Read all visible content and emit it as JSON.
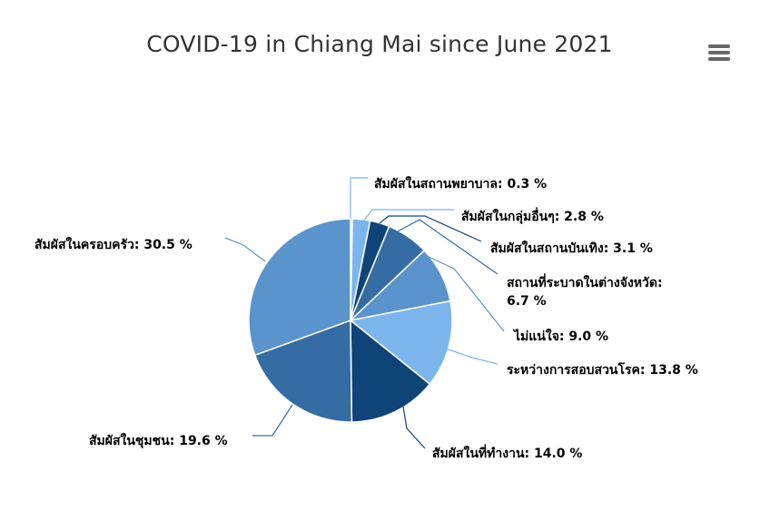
{
  "chart_data": {
    "type": "pie",
    "title": "COVID-19 in Chiang Mai since June 2021",
    "unit": "%",
    "slices": [
      {
        "label": "สัมผัสในสถานพยาบาล",
        "value": 0.3,
        "label_text": "สัมผัสในสถานพยาบาล: 0.3 %",
        "color": "#7fb3e6"
      },
      {
        "label": "สัมผัสในกลุ่มอื่นๆ",
        "value": 2.8,
        "label_text": "สัมผัสในกลุ่มอื่นๆ: 2.8 %",
        "color": "#7cb5ec"
      },
      {
        "label": "สัมผัสในสถานบันเทิง",
        "value": 3.1,
        "label_text": "สัมผัสในสถานบันเทิง: 3.1 %",
        "color": "#0f4478"
      },
      {
        "label": "สถานที่ระบาดในต่างจังหวัด",
        "value": 6.7,
        "label_text": [
          "สถานที่ระบาดในต่างจังหวัด:",
          "6.7 %"
        ],
        "color": "#356ca3"
      },
      {
        "label": "ไม่แน่ใจ",
        "value": 9.0,
        "label_text": "ไม่แน่ใจ: 9.0 %",
        "color": "#5b93cc"
      },
      {
        "label": "ระหว่างการสอบสวนโรค",
        "value": 13.8,
        "label_text": "ระหว่างการสอบสวนโรค: 13.8 %",
        "color": "#7cb5ec"
      },
      {
        "label": "สัมผัสในที่ทำงาน",
        "value": 14.0,
        "label_text": "สัมผัสในที่ทำงาน: 14.0 %",
        "color": "#0f4478"
      },
      {
        "label": "สัมผัสในชุมชน",
        "value": 19.6,
        "label_text": "สัมผัสในชุมชน: 19.6 %",
        "color": "#356ca3"
      },
      {
        "label": "สัมผัสในครอบครัว",
        "value": 30.5,
        "label_text": "สัมผัสในครอบครัว: 30.5 %",
        "color": "#5b93cc"
      }
    ]
  },
  "menu": {
    "icon": "hamburger-menu-icon",
    "color": "#666666"
  }
}
